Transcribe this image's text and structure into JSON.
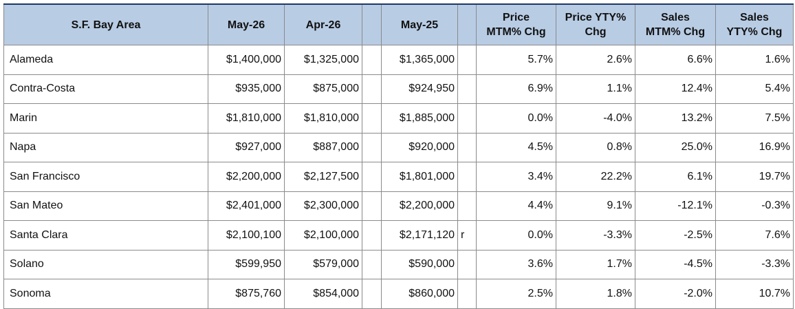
{
  "table": {
    "header": [
      [
        "S.F. Bay Area"
      ],
      [
        "May-26"
      ],
      [
        "Apr-26"
      ],
      [
        "May-25"
      ],
      [
        "Price",
        "MTM% Chg"
      ],
      [
        "Price YTY%",
        "Chg"
      ],
      [
        "Sales",
        "MTM% Chg"
      ],
      [
        "Sales",
        "YTY% Chg"
      ]
    ],
    "rows": [
      {
        "cells": [
          "Alameda",
          "$1,400,000",
          "$1,325,000",
          "$1,365,000",
          "5.7%",
          "2.6%",
          "6.6%",
          "1.6%"
        ]
      },
      {
        "cells": [
          "Contra-Costa",
          "$935,000",
          "$875,000",
          "$924,950",
          "6.9%",
          "1.1%",
          "12.4%",
          "5.4%"
        ]
      },
      {
        "cells": [
          "Marin",
          "$1,810,000",
          "$1,810,000",
          "$1,885,000",
          "0.0%",
          "-4.0%",
          "13.2%",
          "7.5%"
        ]
      },
      {
        "cells": [
          "Napa",
          "$927,000",
          "$887,000",
          "$920,000",
          "4.5%",
          "0.8%",
          "25.0%",
          "16.9%"
        ]
      },
      {
        "cells": [
          "San Francisco",
          "$2,200,000",
          "$2,127,500",
          "$1,801,000",
          "3.4%",
          "22.2%",
          "6.1%",
          "19.7%"
        ]
      },
      {
        "cells": [
          "San Mateo",
          "$2,401,000",
          "$2,300,000",
          "$2,200,000",
          "4.4%",
          "9.1%",
          "-12.1%",
          "-0.3%"
        ]
      },
      {
        "cells": [
          "Santa Clara",
          "$2,100,100",
          "$2,100,000",
          "$2,171,120",
          "0.0%",
          "-3.3%",
          "-2.5%",
          "7.6%"
        ],
        "flag": "r"
      },
      {
        "cells": [
          "Solano",
          "$599,950",
          "$579,000",
          "$590,000",
          "3.6%",
          "1.7%",
          "-4.5%",
          "-3.3%"
        ]
      },
      {
        "cells": [
          "Sonoma",
          "$875,760",
          "$854,000",
          "$860,000",
          "2.5%",
          "1.8%",
          "-2.0%",
          "10.7%"
        ]
      }
    ]
  }
}
